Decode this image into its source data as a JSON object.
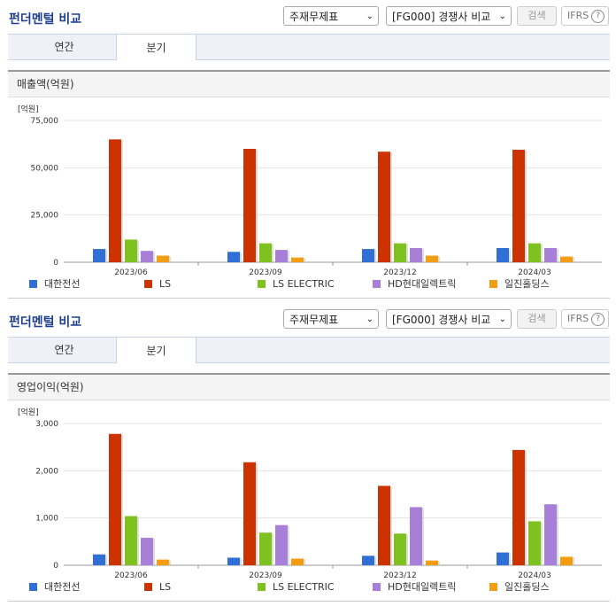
{
  "panels": [
    {
      "title": "펀더멘털 비교",
      "select1": "주재무제표",
      "select2": "[FG000] 경쟁사 비교",
      "search_label": "검색",
      "ifrs_label": "IFRS",
      "tabs": [
        "연간",
        "분기"
      ],
      "active_tab": 1,
      "chart_header": "매출액(억원)",
      "unit_label": "[억원]"
    },
    {
      "title": "펀더멘털 비교",
      "select1": "주재무제표",
      "select2": "[FG000] 경쟁사 비교",
      "search_label": "검색",
      "ifrs_label": "IFRS",
      "tabs": [
        "연간",
        "분기"
      ],
      "active_tab": 1,
      "chart_header": "영업이익(억원)",
      "unit_label": "[억원]"
    }
  ],
  "colors": [
    "#2f6fd6",
    "#cc3300",
    "#7fc21f",
    "#a77fd9",
    "#f59d12"
  ],
  "chart_data": [
    {
      "type": "bar",
      "ylim": [
        0,
        75000
      ],
      "yticks": [
        "0",
        "25,000",
        "50,000",
        "75,000"
      ],
      "ytick_values": [
        0,
        25000,
        50000,
        75000
      ],
      "categories": [
        "2023/06",
        "2023/09",
        "2023/12",
        "2024/03"
      ],
      "series": [
        {
          "name": "대한전선",
          "values": [
            7000,
            5500,
            7000,
            7500
          ]
        },
        {
          "name": "LS",
          "values": [
            65000,
            60000,
            58500,
            59500
          ]
        },
        {
          "name": "LS ELECTRIC",
          "values": [
            12000,
            10000,
            10000,
            10000
          ]
        },
        {
          "name": "HD현대일렉트릭",
          "values": [
            6000,
            6500,
            7500,
            7500
          ]
        },
        {
          "name": "일진홀딩스",
          "values": [
            3500,
            2500,
            3500,
            3000
          ]
        }
      ],
      "legend": "bottom"
    },
    {
      "type": "bar",
      "ylim": [
        0,
        3000
      ],
      "yticks": [
        "0",
        "1,000",
        "2,000",
        "3,000"
      ],
      "ytick_values": [
        0,
        1000,
        2000,
        3000
      ],
      "categories": [
        "2023/06",
        "2023/09",
        "2023/12",
        "2024/03"
      ],
      "series": [
        {
          "name": "대한전선",
          "values": [
            230,
            160,
            200,
            270
          ]
        },
        {
          "name": "LS",
          "values": [
            2780,
            2180,
            1680,
            2440
          ]
        },
        {
          "name": "LS ELECTRIC",
          "values": [
            1040,
            690,
            670,
            930
          ]
        },
        {
          "name": "HD현대일렉트릭",
          "values": [
            580,
            850,
            1230,
            1290
          ]
        },
        {
          "name": "일진홀딩스",
          "values": [
            120,
            140,
            100,
            180
          ]
        }
      ],
      "legend": "bottom"
    }
  ]
}
